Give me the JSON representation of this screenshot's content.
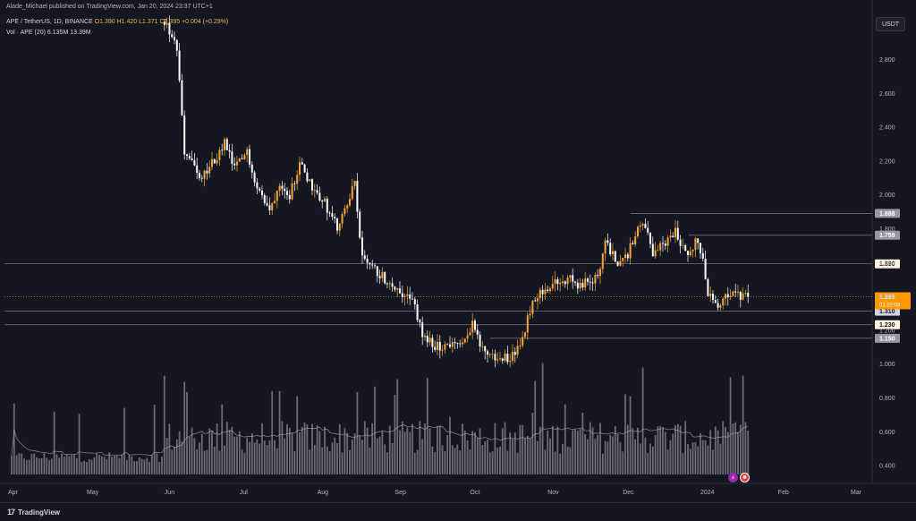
{
  "header": {
    "publisher": "Alade_Michael published on TradingView.com, Jan 20, 2024 23:37 UTC+1",
    "symbol": "APE / TetherUS, 1D, BINANCE",
    "open": "O1.390",
    "high": "H1.420",
    "low": "L1.371",
    "close": "C1.395",
    "change": "+0.004 (+0.29%)",
    "vol_label": "Vol · APE (20)",
    "vol_value": "6.135M",
    "vol_ma": "13.39M"
  },
  "currency_button": "USDT",
  "footer": {
    "brand": "TradingView",
    "logo": "17"
  },
  "colors": {
    "up": "#f7a636",
    "down": "#ffffff",
    "volume": "#787b86",
    "price_label": "#ff9800",
    "level_line": "#787b86",
    "background": "#131722"
  },
  "chart_data": {
    "type": "candlestick",
    "symbol": "APE / TetherUS",
    "interval": "1D",
    "exchange": "BINANCE",
    "xlabel": "",
    "ylabel": "",
    "ylim": [
      0.36,
      3.0
    ],
    "y_ticks": [
      "2.800",
      "2.600",
      "2.400",
      "2.200",
      "2.000",
      "1.800",
      "1.600",
      "1.400",
      "1.200",
      "1.000",
      "0.800",
      "0.600",
      "0.400"
    ],
    "x_ticks": [
      "Apr",
      "May",
      "Jun",
      "Jul",
      "Aug",
      "Sep",
      "Oct",
      "Nov",
      "Dec",
      "2024",
      "Feb",
      "Mar"
    ],
    "horizontal_levels": [
      {
        "label": "1.888",
        "value": 1.888
      },
      {
        "label": "1.759",
        "value": 1.759
      },
      {
        "label": "1.590",
        "value": 1.59
      },
      {
        "label": "1.310",
        "value": 1.31
      },
      {
        "label": "1.230",
        "value": 1.23
      },
      {
        "label": "1.150",
        "value": 1.15
      }
    ],
    "current_price": {
      "value": 1.395,
      "label": "1.395",
      "countdown": "01:22:08"
    },
    "price_anchors": [
      [
        "2023-06-01",
        3.02
      ],
      [
        "2023-06-03",
        2.95
      ],
      [
        "2023-06-06",
        2.85
      ],
      [
        "2023-06-09",
        2.25
      ],
      [
        "2023-06-12",
        2.2
      ],
      [
        "2023-06-15",
        2.08
      ],
      [
        "2023-06-21",
        2.2
      ],
      [
        "2023-06-25",
        2.3
      ],
      [
        "2023-06-29",
        2.15
      ],
      [
        "2023-07-04",
        2.25
      ],
      [
        "2023-07-08",
        2.05
      ],
      [
        "2023-07-13",
        1.9
      ],
      [
        "2023-07-17",
        2.08
      ],
      [
        "2023-07-21",
        2.0
      ],
      [
        "2023-07-25",
        2.18
      ],
      [
        "2023-07-30",
        2.05
      ],
      [
        "2023-08-04",
        1.95
      ],
      [
        "2023-08-09",
        1.8
      ],
      [
        "2023-08-13",
        1.92
      ],
      [
        "2023-08-16",
        2.1
      ],
      [
        "2023-08-18",
        1.72
      ],
      [
        "2023-08-20",
        1.6
      ],
      [
        "2023-08-24",
        1.55
      ],
      [
        "2023-08-30",
        1.48
      ],
      [
        "2023-09-04",
        1.42
      ],
      [
        "2023-09-09",
        1.35
      ],
      [
        "2023-09-12",
        1.15
      ],
      [
        "2023-09-18",
        1.1
      ],
      [
        "2023-09-24",
        1.12
      ],
      [
        "2023-09-28",
        1.1
      ],
      [
        "2023-10-02",
        1.25
      ],
      [
        "2023-10-05",
        1.1
      ],
      [
        "2023-10-09",
        1.05
      ],
      [
        "2023-10-12",
        1.02
      ],
      [
        "2023-10-18",
        1.05
      ],
      [
        "2023-10-22",
        1.15
      ],
      [
        "2023-10-26",
        1.38
      ],
      [
        "2023-10-31",
        1.45
      ],
      [
        "2023-11-06",
        1.48
      ],
      [
        "2023-11-10",
        1.5
      ],
      [
        "2023-11-14",
        1.45
      ],
      [
        "2023-11-18",
        1.5
      ],
      [
        "2023-11-21",
        1.5
      ],
      [
        "2023-11-24",
        1.75
      ],
      [
        "2023-11-28",
        1.6
      ],
      [
        "2023-12-02",
        1.62
      ],
      [
        "2023-12-06",
        1.75
      ],
      [
        "2023-12-09",
        1.85
      ],
      [
        "2023-12-13",
        1.65
      ],
      [
        "2023-12-17",
        1.7
      ],
      [
        "2023-12-22",
        1.78
      ],
      [
        "2023-12-26",
        1.65
      ],
      [
        "2023-12-30",
        1.72
      ],
      [
        "2024-01-02",
        1.65
      ],
      [
        "2024-01-04",
        1.4
      ],
      [
        "2024-01-08",
        1.35
      ],
      [
        "2024-01-12",
        1.42
      ],
      [
        "2024-01-16",
        1.4
      ],
      [
        "2024-01-19",
        1.39
      ],
      [
        "2024-01-20",
        1.395
      ]
    ],
    "volume_ylim": [
      0,
      60
    ]
  }
}
